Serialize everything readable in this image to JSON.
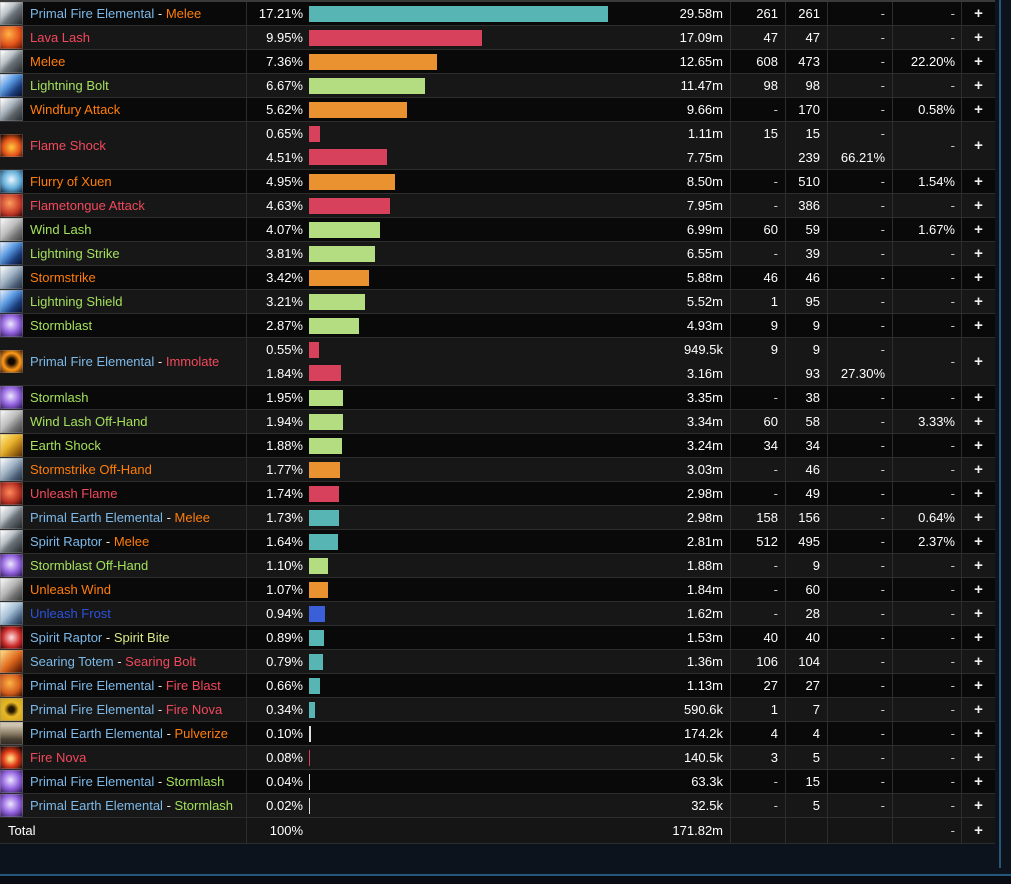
{
  "page": {
    "background": "#0d131c",
    "accent_line": "#25577a"
  },
  "colors": {
    "pet": "#7db9e8",
    "physical": "#ff7d0a",
    "fire": "#f2495c",
    "nature": "#a4e05b",
    "frost": "#2c52dd",
    "spirit": "#d8e886",
    "separator": "#e8e8e8",
    "bar_teal": "#57b6b4",
    "bar_red": "#d8415b",
    "bar_orange": "#ea9130",
    "bar_green": "#b3dd80",
    "bar_blue": "#3a5fd9",
    "bar_white": "#e0e0e0"
  },
  "table": {
    "plus_label": "+",
    "rows": [
      {
        "icon": "sword",
        "parts": [
          {
            "t": "Primal Fire Elemental",
            "c": "pet"
          },
          {
            "t": " - ",
            "c": "separator"
          },
          {
            "t": "Melee",
            "c": "physical"
          }
        ],
        "lines": [
          {
            "pct": "17.21%",
            "value": 17.21,
            "bar": "teal",
            "amount": "29.58m"
          }
        ],
        "casts": "261",
        "hits": [
          "261"
        ],
        "extra": [
          "-"
        ],
        "crit": "-"
      },
      {
        "icon": "lavalash",
        "parts": [
          {
            "t": "Lava Lash",
            "c": "fire"
          }
        ],
        "lines": [
          {
            "pct": "9.95%",
            "value": 9.95,
            "bar": "red",
            "amount": "17.09m"
          }
        ],
        "casts": "47",
        "hits": [
          "47"
        ],
        "extra": [
          "-"
        ],
        "crit": "-"
      },
      {
        "icon": "sword",
        "parts": [
          {
            "t": "Melee",
            "c": "physical"
          }
        ],
        "lines": [
          {
            "pct": "7.36%",
            "value": 7.36,
            "bar": "orange",
            "amount": "12.65m"
          }
        ],
        "casts": "608",
        "hits": [
          "473"
        ],
        "extra": [
          "-"
        ],
        "crit": "22.20%"
      },
      {
        "icon": "lightning",
        "parts": [
          {
            "t": "Lightning Bolt",
            "c": "nature"
          }
        ],
        "lines": [
          {
            "pct": "6.67%",
            "value": 6.67,
            "bar": "green",
            "amount": "11.47m"
          }
        ],
        "casts": "98",
        "hits": [
          "98"
        ],
        "extra": [
          "-"
        ],
        "crit": "-"
      },
      {
        "icon": "windfury",
        "parts": [
          {
            "t": "Windfury Attack",
            "c": "physical"
          }
        ],
        "lines": [
          {
            "pct": "5.62%",
            "value": 5.62,
            "bar": "orange",
            "amount": "9.66m"
          }
        ],
        "casts": "-",
        "hits": [
          "170"
        ],
        "extra": [
          "-"
        ],
        "crit": "0.58%"
      },
      {
        "icon": "flameshock",
        "parts": [
          {
            "t": "Flame Shock",
            "c": "fire"
          }
        ],
        "lines": [
          {
            "pct": "0.65%",
            "value": 0.65,
            "bar": "red",
            "amount": "1.11m"
          },
          {
            "pct": "4.51%",
            "value": 4.51,
            "bar": "red",
            "amount": "7.75m"
          }
        ],
        "casts": "15",
        "hits": [
          "15",
          "239"
        ],
        "extra": [
          "-",
          "66.21%"
        ],
        "crit": "-"
      },
      {
        "icon": "tiger",
        "parts": [
          {
            "t": "Flurry of Xuen",
            "c": "physical"
          }
        ],
        "lines": [
          {
            "pct": "4.95%",
            "value": 4.95,
            "bar": "orange",
            "amount": "8.50m"
          }
        ],
        "casts": "-",
        "hits": [
          "510"
        ],
        "extra": [
          "-"
        ],
        "crit": "1.54%"
      },
      {
        "icon": "flametongue",
        "parts": [
          {
            "t": "Flametongue Attack",
            "c": "fire"
          }
        ],
        "lines": [
          {
            "pct": "4.63%",
            "value": 4.63,
            "bar": "red",
            "amount": "7.95m"
          }
        ],
        "casts": "-",
        "hits": [
          "386"
        ],
        "extra": [
          "-"
        ],
        "crit": "-"
      },
      {
        "icon": "windgray",
        "parts": [
          {
            "t": "Wind Lash",
            "c": "nature"
          }
        ],
        "lines": [
          {
            "pct": "4.07%",
            "value": 4.07,
            "bar": "green",
            "amount": "6.99m"
          }
        ],
        "casts": "60",
        "hits": [
          "59"
        ],
        "extra": [
          "-"
        ],
        "crit": "1.67%"
      },
      {
        "icon": "lightning",
        "parts": [
          {
            "t": "Lightning Strike",
            "c": "nature"
          }
        ],
        "lines": [
          {
            "pct": "3.81%",
            "value": 3.81,
            "bar": "green",
            "amount": "6.55m"
          }
        ],
        "casts": "-",
        "hits": [
          "39"
        ],
        "extra": [
          "-"
        ],
        "crit": "-"
      },
      {
        "icon": "hammer",
        "parts": [
          {
            "t": "Stormstrike",
            "c": "physical"
          }
        ],
        "lines": [
          {
            "pct": "3.42%",
            "value": 3.42,
            "bar": "orange",
            "amount": "5.88m"
          }
        ],
        "casts": "46",
        "hits": [
          "46"
        ],
        "extra": [
          "-"
        ],
        "crit": "-"
      },
      {
        "icon": "lightning",
        "parts": [
          {
            "t": "Lightning Shield",
            "c": "nature"
          }
        ],
        "lines": [
          {
            "pct": "3.21%",
            "value": 3.21,
            "bar": "green",
            "amount": "5.52m"
          }
        ],
        "casts": "1",
        "hits": [
          "95"
        ],
        "extra": [
          "-"
        ],
        "crit": "-"
      },
      {
        "icon": "stormpurple",
        "parts": [
          {
            "t": "Stormblast",
            "c": "nature"
          }
        ],
        "lines": [
          {
            "pct": "2.87%",
            "value": 2.87,
            "bar": "green",
            "amount": "4.93m"
          }
        ],
        "casts": "9",
        "hits": [
          "9"
        ],
        "extra": [
          "-"
        ],
        "crit": "-"
      },
      {
        "icon": "immolate",
        "parts": [
          {
            "t": "Primal Fire Elemental",
            "c": "pet"
          },
          {
            "t": " - ",
            "c": "separator"
          },
          {
            "t": "Immolate",
            "c": "fire"
          }
        ],
        "lines": [
          {
            "pct": "0.55%",
            "value": 0.55,
            "bar": "red",
            "amount": "949.5k"
          },
          {
            "pct": "1.84%",
            "value": 1.84,
            "bar": "red",
            "amount": "3.16m"
          }
        ],
        "casts": "9",
        "hits": [
          "9",
          "93"
        ],
        "extra": [
          "-",
          "27.30%"
        ],
        "crit": "-"
      },
      {
        "icon": "stormpurple",
        "parts": [
          {
            "t": "Stormlash",
            "c": "nature"
          }
        ],
        "lines": [
          {
            "pct": "1.95%",
            "value": 1.95,
            "bar": "green",
            "amount": "3.35m"
          }
        ],
        "casts": "-",
        "hits": [
          "38"
        ],
        "extra": [
          "-"
        ],
        "crit": "-"
      },
      {
        "icon": "windgray",
        "parts": [
          {
            "t": "Wind Lash Off-Hand",
            "c": "nature"
          }
        ],
        "lines": [
          {
            "pct": "1.94%",
            "value": 1.94,
            "bar": "green",
            "amount": "3.34m"
          }
        ],
        "casts": "60",
        "hits": [
          "58"
        ],
        "extra": [
          "-"
        ],
        "crit": "3.33%"
      },
      {
        "icon": "earthshock",
        "parts": [
          {
            "t": "Earth Shock",
            "c": "nature"
          }
        ],
        "lines": [
          {
            "pct": "1.88%",
            "value": 1.88,
            "bar": "green",
            "amount": "3.24m"
          }
        ],
        "casts": "34",
        "hits": [
          "34"
        ],
        "extra": [
          "-"
        ],
        "crit": "-"
      },
      {
        "icon": "hammer",
        "parts": [
          {
            "t": "Stormstrike Off-Hand",
            "c": "physical"
          }
        ],
        "lines": [
          {
            "pct": "1.77%",
            "value": 1.77,
            "bar": "orange",
            "amount": "3.03m"
          }
        ],
        "casts": "-",
        "hits": [
          "46"
        ],
        "extra": [
          "-"
        ],
        "crit": "-"
      },
      {
        "icon": "unleashflame",
        "parts": [
          {
            "t": "Unleash Flame",
            "c": "fire"
          }
        ],
        "lines": [
          {
            "pct": "1.74%",
            "value": 1.74,
            "bar": "red",
            "amount": "2.98m"
          }
        ],
        "casts": "-",
        "hits": [
          "49"
        ],
        "extra": [
          "-"
        ],
        "crit": "-"
      },
      {
        "icon": "sword",
        "parts": [
          {
            "t": "Primal Earth Elemental",
            "c": "pet"
          },
          {
            "t": " - ",
            "c": "separator"
          },
          {
            "t": "Melee",
            "c": "physical"
          }
        ],
        "lines": [
          {
            "pct": "1.73%",
            "value": 1.73,
            "bar": "teal",
            "amount": "2.98m"
          }
        ],
        "casts": "158",
        "hits": [
          "156"
        ],
        "extra": [
          "-"
        ],
        "crit": "0.64%"
      },
      {
        "icon": "sword",
        "parts": [
          {
            "t": "Spirit Raptor",
            "c": "pet"
          },
          {
            "t": " - ",
            "c": "separator"
          },
          {
            "t": "Melee",
            "c": "physical"
          }
        ],
        "lines": [
          {
            "pct": "1.64%",
            "value": 1.64,
            "bar": "teal",
            "amount": "2.81m"
          }
        ],
        "casts": "512",
        "hits": [
          "495"
        ],
        "extra": [
          "-"
        ],
        "crit": "2.37%"
      },
      {
        "icon": "stormpurple",
        "parts": [
          {
            "t": "Stormblast Off-Hand",
            "c": "nature"
          }
        ],
        "lines": [
          {
            "pct": "1.10%",
            "value": 1.1,
            "bar": "green",
            "amount": "1.88m"
          }
        ],
        "casts": "-",
        "hits": [
          "9"
        ],
        "extra": [
          "-"
        ],
        "crit": "-"
      },
      {
        "icon": "unleashwind",
        "parts": [
          {
            "t": "Unleash Wind",
            "c": "physical"
          }
        ],
        "lines": [
          {
            "pct": "1.07%",
            "value": 1.07,
            "bar": "orange",
            "amount": "1.84m"
          }
        ],
        "casts": "-",
        "hits": [
          "60"
        ],
        "extra": [
          "-"
        ],
        "crit": "-"
      },
      {
        "icon": "unleashfrost",
        "parts": [
          {
            "t": "Unleash Frost",
            "c": "frost"
          }
        ],
        "lines": [
          {
            "pct": "0.94%",
            "value": 0.94,
            "bar": "blue",
            "amount": "1.62m"
          }
        ],
        "casts": "-",
        "hits": [
          "28"
        ],
        "extra": [
          "-"
        ],
        "crit": "-"
      },
      {
        "icon": "spiritbite",
        "parts": [
          {
            "t": "Spirit Raptor",
            "c": "pet"
          },
          {
            "t": " - ",
            "c": "separator"
          },
          {
            "t": "Spirit Bite",
            "c": "spirit"
          }
        ],
        "lines": [
          {
            "pct": "0.89%",
            "value": 0.89,
            "bar": "teal",
            "amount": "1.53m"
          }
        ],
        "casts": "40",
        "hits": [
          "40"
        ],
        "extra": [
          "-"
        ],
        "crit": "-"
      },
      {
        "icon": "searing",
        "parts": [
          {
            "t": "Searing Totem",
            "c": "pet"
          },
          {
            "t": " - ",
            "c": "separator"
          },
          {
            "t": "Searing Bolt",
            "c": "fire"
          }
        ],
        "lines": [
          {
            "pct": "0.79%",
            "value": 0.79,
            "bar": "teal",
            "amount": "1.36m"
          }
        ],
        "casts": "106",
        "hits": [
          "104"
        ],
        "extra": [
          "-"
        ],
        "crit": "-"
      },
      {
        "icon": "fireblast",
        "parts": [
          {
            "t": "Primal Fire Elemental",
            "c": "pet"
          },
          {
            "t": " - ",
            "c": "separator"
          },
          {
            "t": "Fire Blast",
            "c": "fire"
          }
        ],
        "lines": [
          {
            "pct": "0.66%",
            "value": 0.66,
            "bar": "teal",
            "amount": "1.13m"
          }
        ],
        "casts": "27",
        "hits": [
          "27"
        ],
        "extra": [
          "-"
        ],
        "crit": "-"
      },
      {
        "icon": "firenovagold",
        "parts": [
          {
            "t": "Primal Fire Elemental",
            "c": "pet"
          },
          {
            "t": " - ",
            "c": "separator"
          },
          {
            "t": "Fire Nova",
            "c": "fire"
          }
        ],
        "lines": [
          {
            "pct": "0.34%",
            "value": 0.34,
            "bar": "teal",
            "amount": "590.6k"
          }
        ],
        "casts": "1",
        "hits": [
          "7"
        ],
        "extra": [
          "-"
        ],
        "crit": "-"
      },
      {
        "icon": "pulverize",
        "parts": [
          {
            "t": "Primal Earth Elemental",
            "c": "pet"
          },
          {
            "t": " - ",
            "c": "separator"
          },
          {
            "t": "Pulverize",
            "c": "physical"
          }
        ],
        "lines": [
          {
            "pct": "0.10%",
            "value": 0.1,
            "bar": "white",
            "amount": "174.2k"
          }
        ],
        "casts": "4",
        "hits": [
          "4"
        ],
        "extra": [
          "-"
        ],
        "crit": "-"
      },
      {
        "icon": "firenovared",
        "parts": [
          {
            "t": "Fire Nova",
            "c": "fire"
          }
        ],
        "lines": [
          {
            "pct": "0.08%",
            "value": 0.08,
            "bar": "red",
            "amount": "140.5k"
          }
        ],
        "casts": "3",
        "hits": [
          "5"
        ],
        "extra": [
          "-"
        ],
        "crit": "-"
      },
      {
        "icon": "stormpurple",
        "parts": [
          {
            "t": "Primal Fire Elemental",
            "c": "pet"
          },
          {
            "t": " - ",
            "c": "separator"
          },
          {
            "t": "Stormlash",
            "c": "nature"
          }
        ],
        "lines": [
          {
            "pct": "0.04%",
            "value": 0.04,
            "bar": "white",
            "amount": "63.3k"
          }
        ],
        "casts": "-",
        "hits": [
          "15"
        ],
        "extra": [
          "-"
        ],
        "crit": "-"
      },
      {
        "icon": "stormpurple",
        "parts": [
          {
            "t": "Primal Earth Elemental",
            "c": "pet"
          },
          {
            "t": " - ",
            "c": "separator"
          },
          {
            "t": "Stormlash",
            "c": "nature"
          }
        ],
        "lines": [
          {
            "pct": "0.02%",
            "value": 0.02,
            "bar": "white",
            "amount": "32.5k"
          }
        ],
        "casts": "-",
        "hits": [
          "5"
        ],
        "extra": [
          "-"
        ],
        "crit": "-"
      }
    ],
    "total": {
      "label": "Total",
      "pct": "100%",
      "amount": "171.82m",
      "crit": "-"
    }
  }
}
